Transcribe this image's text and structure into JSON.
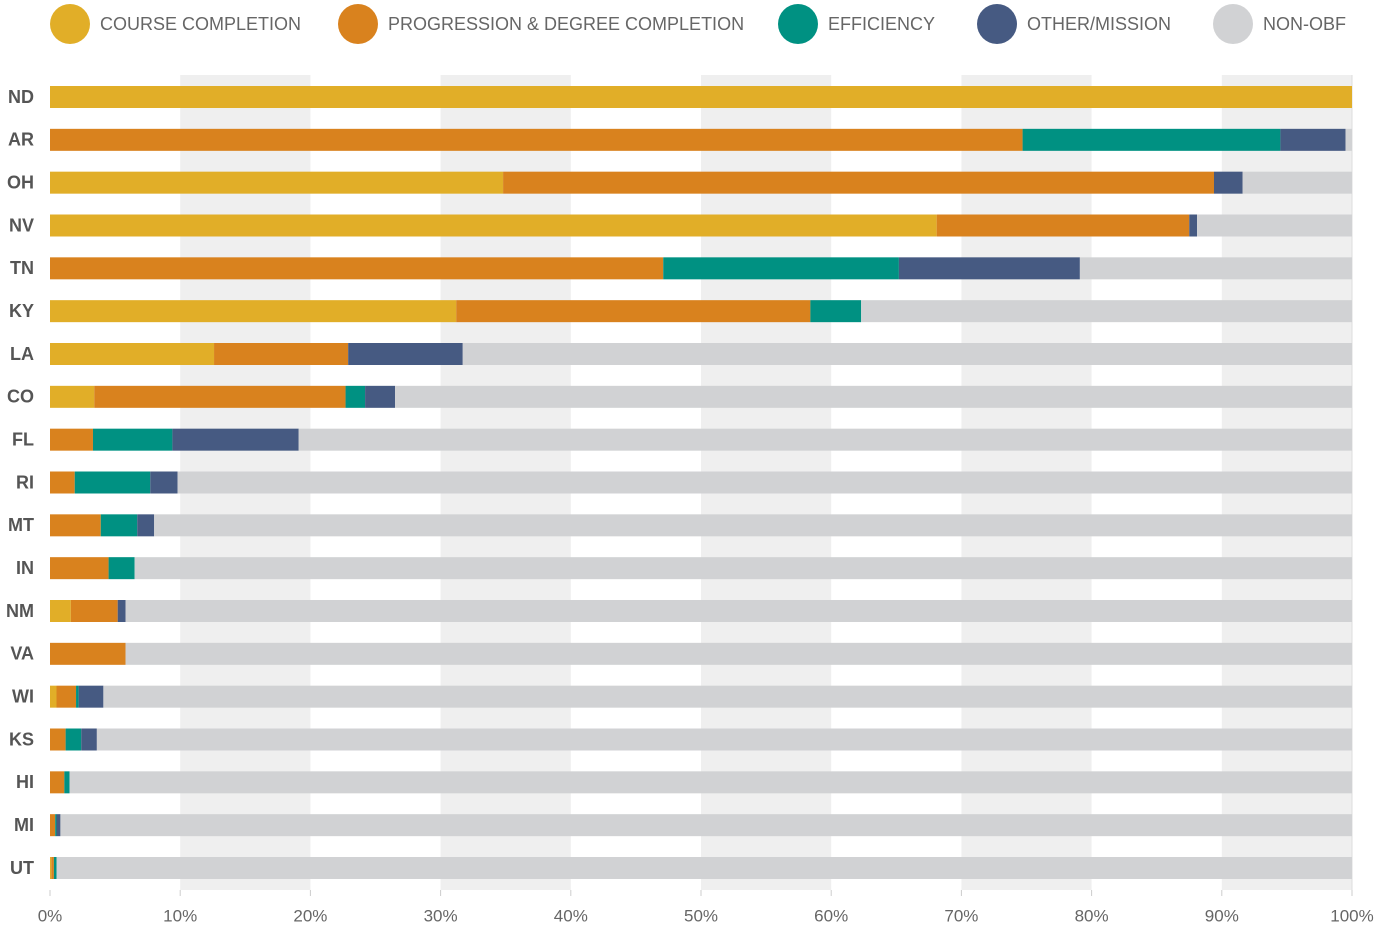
{
  "chart_data": {
    "type": "stacked-bar-horizontal",
    "categories": [
      "ND",
      "AR",
      "OH",
      "NV",
      "TN",
      "KY",
      "LA",
      "CO",
      "FL",
      "RI",
      "MT",
      "IN",
      "NM",
      "VA",
      "WI",
      "KS",
      "HI",
      "MI",
      "UT"
    ],
    "series": [
      {
        "name": "COURSE COMPLETION",
        "color": "#e1ae28",
        "values": [
          100,
          0,
          34.8,
          68.1,
          0,
          31.2,
          12.6,
          3.4,
          0,
          0,
          0,
          0,
          1.6,
          0,
          0.5,
          0,
          0,
          0,
          0.1
        ]
      },
      {
        "name": "PROGRESSION & DEGREE COMPLETION",
        "color": "#d9821e",
        "values": [
          0,
          74.7,
          54.6,
          19.4,
          47.1,
          27.2,
          10.3,
          19.3,
          3.3,
          1.9,
          3.9,
          4.5,
          3.6,
          5.8,
          1.5,
          1.2,
          1.1,
          0.4,
          0.2
        ]
      },
      {
        "name": "EFFICIENCY",
        "color": "#009182",
        "values": [
          0,
          19.8,
          0,
          0,
          18.1,
          3.9,
          0,
          1.5,
          6.1,
          5.8,
          2.8,
          2.0,
          0,
          0,
          0.2,
          1.2,
          0.4,
          0.1,
          0.2
        ]
      },
      {
        "name": "OTHER/MISSION",
        "color": "#465a82",
        "values": [
          0,
          5.0,
          2.2,
          0.6,
          13.9,
          0,
          8.8,
          2.3,
          9.7,
          2.1,
          1.3,
          0,
          0.6,
          0,
          1.9,
          1.2,
          0,
          0.3,
          0
        ]
      },
      {
        "name": "NON-OBF",
        "color": "#d1d2d4",
        "values": [
          0,
          0.5,
          8.4,
          11.9,
          20.9,
          37.7,
          68.3,
          73.5,
          80.9,
          90.2,
          92.0,
          93.5,
          94.2,
          94.2,
          95.9,
          96.4,
          98.5,
          99.2,
          99.5
        ]
      }
    ],
    "xlim": [
      0,
      100
    ],
    "xticks": [
      {
        "value": 0,
        "label": "0%"
      },
      {
        "value": 10,
        "label": "10%"
      },
      {
        "value": 20,
        "label": "20%"
      },
      {
        "value": 30,
        "label": "30%"
      },
      {
        "value": 40,
        "label": "40%"
      },
      {
        "value": 50,
        "label": "50%"
      },
      {
        "value": 60,
        "label": "60%"
      },
      {
        "value": 70,
        "label": "70%"
      },
      {
        "value": 80,
        "label": "80%"
      },
      {
        "value": 90,
        "label": "90%"
      },
      {
        "value": 100,
        "label": "100%"
      }
    ]
  }
}
